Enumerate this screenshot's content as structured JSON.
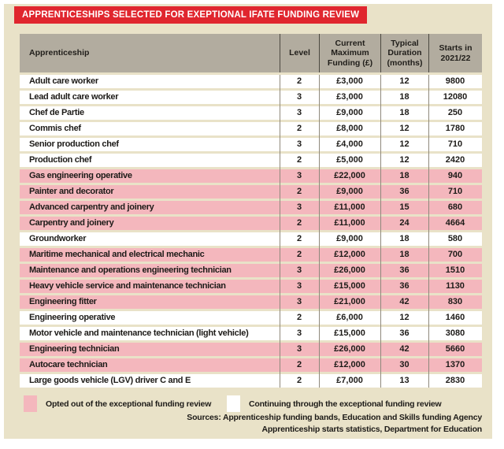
{
  "title": "APPRENTICESHIPS SELECTED FOR EXEPTIONAL IFATE FUNDING REVIEW",
  "chart_data": {
    "type": "table",
    "title": "Apprenticeships selected for exeptional IfATE funding review",
    "columns": [
      "Apprenticeship",
      "Level",
      "Current Maximum Funding (£)",
      "Typical Duration (months)",
      "Starts in 2021/22"
    ],
    "rows": [
      {
        "name": "Adult care worker",
        "level": "2",
        "funding": "£3,000",
        "duration": "12",
        "starts": "9800",
        "status": "continuing"
      },
      {
        "name": "Lead adult care worker",
        "level": "3",
        "funding": "£3,000",
        "duration": "18",
        "starts": "12080",
        "status": "continuing"
      },
      {
        "name": "Chef de Partie",
        "level": "3",
        "funding": "£9,000",
        "duration": "18",
        "starts": "250",
        "status": "continuing"
      },
      {
        "name": "Commis chef",
        "level": "2",
        "funding": "£8,000",
        "duration": "12",
        "starts": "1780",
        "status": "continuing"
      },
      {
        "name": "Senior production chef",
        "level": "3",
        "funding": "£4,000",
        "duration": "12",
        "starts": "710",
        "status": "continuing"
      },
      {
        "name": "Production chef",
        "level": "2",
        "funding": "£5,000",
        "duration": "12",
        "starts": "2420",
        "status": "continuing"
      },
      {
        "name": "Gas engineering operative",
        "level": "3",
        "funding": "£22,000",
        "duration": "18",
        "starts": "940",
        "status": "opted_out"
      },
      {
        "name": "Painter and decorator",
        "level": "2",
        "funding": "£9,000",
        "duration": "36",
        "starts": "710",
        "status": "opted_out"
      },
      {
        "name": "Advanced carpentry and joinery",
        "level": "3",
        "funding": "£11,000",
        "duration": "15",
        "starts": "680",
        "status": "opted_out"
      },
      {
        "name": "Carpentry and joinery",
        "level": "2",
        "funding": "£11,000",
        "duration": "24",
        "starts": "4664",
        "status": "opted_out"
      },
      {
        "name": "Groundworker",
        "level": "2",
        "funding": "£9,000",
        "duration": "18",
        "starts": "580",
        "status": "continuing"
      },
      {
        "name": "Maritime mechanical and electrical mechanic",
        "level": "2",
        "funding": "£12,000",
        "duration": "18",
        "starts": "700",
        "status": "opted_out"
      },
      {
        "name": "Maintenance and operations engineering technician",
        "level": "3",
        "funding": "£26,000",
        "duration": "36",
        "starts": "1510",
        "status": "opted_out"
      },
      {
        "name": "Heavy vehicle service and maintenance technician",
        "level": "3",
        "funding": "£15,000",
        "duration": "36",
        "starts": "1130",
        "status": "opted_out"
      },
      {
        "name": "Engineering fitter",
        "level": "3",
        "funding": "£21,000",
        "duration": "42",
        "starts": "830",
        "status": "opted_out"
      },
      {
        "name": "Engineering operative",
        "level": "2",
        "funding": "£6,000",
        "duration": "12",
        "starts": "1460",
        "status": "continuing"
      },
      {
        "name": "Motor vehicle and maintenance technician (light vehicle)",
        "level": "3",
        "funding": "£15,000",
        "duration": "36",
        "starts": "3080",
        "status": "continuing"
      },
      {
        "name": "Engineering technician",
        "level": "3",
        "funding": "£26,000",
        "duration": "42",
        "starts": "5660",
        "status": "opted_out"
      },
      {
        "name": "Autocare technician",
        "level": "2",
        "funding": "£12,000",
        "duration": "30",
        "starts": "1370",
        "status": "opted_out"
      },
      {
        "name": "Large goods vehicle (LGV) driver C and E",
        "level": "2",
        "funding": "£7,000",
        "duration": "13",
        "starts": "2830",
        "status": "continuing"
      }
    ],
    "legend": [
      {
        "key": "opted_out",
        "label": "Opted out of the exceptional funding review",
        "color": "#f4b7bd"
      },
      {
        "key": "continuing",
        "label": "Continuing through the exceptional funding review",
        "color": "#ffffff"
      }
    ],
    "sources": [
      "Sources: Apprenticeship funding bands, Education and Skills funding Agency",
      "Apprenticeship starts statistics, Department for Education"
    ]
  },
  "colors": {
    "banner_red": "#e0262e",
    "panel_beige": "#e9e2c8",
    "header_gray": "#b2ac9f",
    "opted_out_pink": "#f4b7bd",
    "continuing_white": "#ffffff",
    "text_dark": "#1d1b18",
    "separator_gray": "#8f897c"
  }
}
